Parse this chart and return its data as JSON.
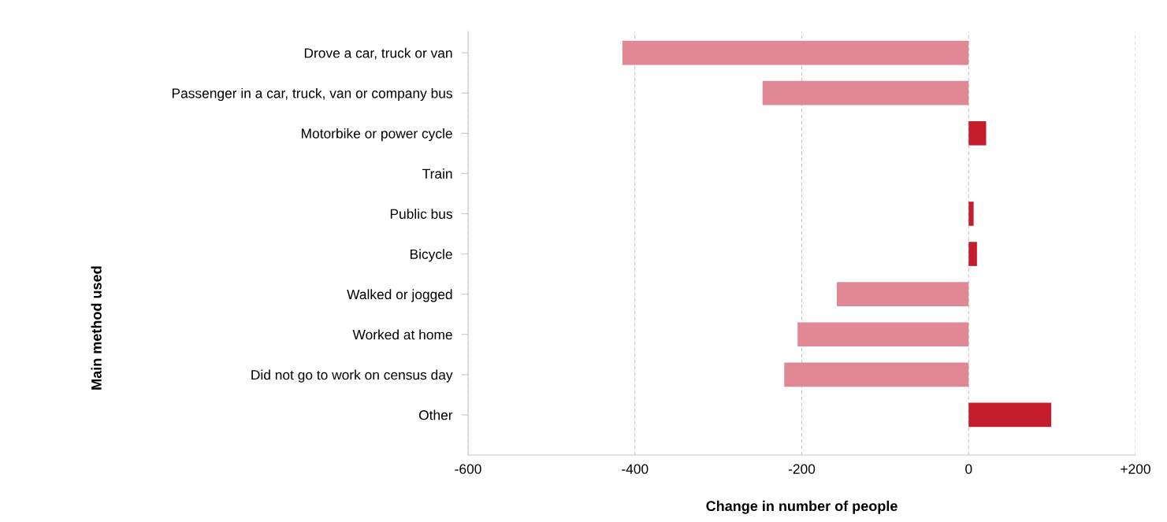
{
  "chart_data": {
    "type": "bar",
    "orientation": "horizontal",
    "categories": [
      "Drove a car, truck or van",
      "Passenger in a car, truck, van or company bus",
      "Motorbike or power cycle",
      "Train",
      "Public bus",
      "Bicycle",
      "Walked or jogged",
      "Worked at home",
      "Did not go to work on census day",
      "Other"
    ],
    "values": [
      -415,
      -247,
      21,
      0,
      6,
      10,
      -158,
      -205,
      -221,
      99
    ],
    "colors": [
      "#e08896",
      "#e08896",
      "#c41e2e",
      "#c41e2e",
      "#c41e2e",
      "#c41e2e",
      "#e08896",
      "#e08896",
      "#e08896",
      "#c41e2e"
    ],
    "xlabel": "Change in number of people",
    "ylabel": "Main method used",
    "xlim": [
      -600,
      200
    ],
    "xticks": [
      -600,
      -400,
      -200,
      0,
      {
        "value": 200,
        "label": "+200"
      }
    ],
    "grid": "x"
  }
}
